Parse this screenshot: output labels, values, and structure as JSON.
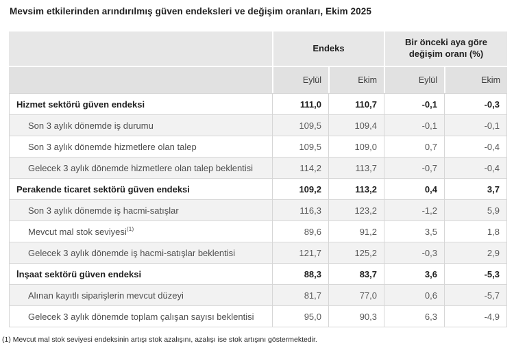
{
  "title": "Mevsim etkilerinden arındırılmış güven endeksleri ve değişim oranları, Ekim 2025",
  "table": {
    "column_groups": [
      "Endeks",
      "Bir önceki aya göre değişim oranı (%)"
    ],
    "sub_headers": [
      "Eylül",
      "Ekim",
      "Eylül",
      "Ekim"
    ],
    "rows": [
      {
        "label": "Hizmet sektörü güven endeksi",
        "bold": true,
        "values": [
          "111,0",
          "110,7",
          "-0,1",
          "-0,3"
        ]
      },
      {
        "label": "Son 3 aylık dönemde iş durumu",
        "bold": false,
        "values": [
          "109,5",
          "109,4",
          "-0,1",
          "-0,1"
        ]
      },
      {
        "label": "Son 3 aylık dönemde hizmetlere olan talep",
        "bold": false,
        "values": [
          "109,5",
          "109,0",
          "0,7",
          "-0,4"
        ]
      },
      {
        "label": "Gelecek 3 aylık dönemde hizmetlere olan talep beklentisi",
        "bold": false,
        "values": [
          "114,2",
          "113,7",
          "-0,7",
          "-0,4"
        ]
      },
      {
        "label": "Perakende ticaret sektörü güven endeksi",
        "bold": true,
        "values": [
          "109,2",
          "113,2",
          "0,4",
          "3,7"
        ]
      },
      {
        "label": "Son 3 aylık dönemde iş hacmi-satışlar",
        "bold": false,
        "values": [
          "116,3",
          "123,2",
          "-1,2",
          "5,9"
        ]
      },
      {
        "label": "Mevcut mal stok seviyesi",
        "footnote_ref": "(1)",
        "bold": false,
        "values": [
          "89,6",
          "91,2",
          "3,5",
          "1,8"
        ]
      },
      {
        "label": "Gelecek 3 aylık dönemde iş hacmi-satışlar beklentisi",
        "bold": false,
        "values": [
          "121,7",
          "125,2",
          "-0,3",
          "2,9"
        ]
      },
      {
        "label": "İnşaat sektörü güven endeksi",
        "bold": true,
        "values": [
          "88,3",
          "83,7",
          "3,6",
          "-5,3"
        ]
      },
      {
        "label": "Alınan kayıtlı siparişlerin mevcut düzeyi",
        "bold": false,
        "values": [
          "81,7",
          "77,0",
          "0,6",
          "-5,7"
        ]
      },
      {
        "label": "Gelecek 3 aylık dönemde toplam çalışan sayısı beklentisi",
        "bold": false,
        "values": [
          "95,0",
          "90,3",
          "6,3",
          "-4,9"
        ]
      }
    ]
  },
  "footnote": "(1) Mevcut mal stok seviyesi endeksinin artışı stok azalışını, azalışı ise stok artışını göstermektedir.",
  "colors": {
    "header_bg": "#e7e7e7",
    "subheader_bg": "#e1e1e1",
    "stripe_bg": "#f2f2f2",
    "border": "#d6d6d6",
    "text_bold": "#1f1f1f",
    "text_normal": "#595959"
  }
}
